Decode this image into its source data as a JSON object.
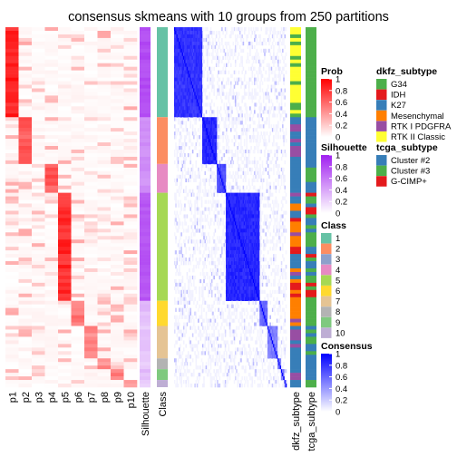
{
  "chart_data": {
    "type": "heatmap",
    "title": "consensus skmeans with 10 groups from 250 partitions",
    "prob_columns": [
      "p1",
      "p2",
      "p3",
      "p4",
      "p5",
      "p6",
      "p7",
      "p8",
      "p9",
      "p10"
    ],
    "silhouette_label": "Silhouette",
    "class_label": "Class",
    "annotation_columns": [
      "dkfz_subtype",
      "tcga_subtype"
    ],
    "legends": {
      "prob": {
        "title": "Prob",
        "ticks": [
          "1",
          "0.8",
          "0.6",
          "0.4",
          "0.2",
          "0"
        ],
        "low": "#ffffff",
        "high": "#ff0000"
      },
      "silhouette": {
        "title": "Silhouette",
        "ticks": [
          "1",
          "0.8",
          "0.6",
          "0.4",
          "0.2",
          "0"
        ],
        "low": "#ffffff",
        "high": "#a020f0"
      },
      "class": {
        "title": "Class",
        "items": [
          {
            "label": "1",
            "color": "#66c2a5"
          },
          {
            "label": "2",
            "color": "#fc8d62"
          },
          {
            "label": "3",
            "color": "#8da0cb"
          },
          {
            "label": "4",
            "color": "#e78ac3"
          },
          {
            "label": "5",
            "color": "#a6d854"
          },
          {
            "label": "6",
            "color": "#ffd92f"
          },
          {
            "label": "7",
            "color": "#e5c494"
          },
          {
            "label": "8",
            "color": "#b3b3b3"
          },
          {
            "label": "9",
            "color": "#7fc97f"
          },
          {
            "label": "10",
            "color": "#beaed4"
          }
        ]
      },
      "consensus": {
        "title": "Consensus",
        "ticks": [
          "1",
          "0.8",
          "0.6",
          "0.4",
          "0.2",
          "0"
        ],
        "low": "#ffffff",
        "high": "#0000ff"
      },
      "dkfz_subtype": {
        "title": "dkfz_subtype",
        "items": [
          {
            "label": "G34",
            "color": "#4daf4a"
          },
          {
            "label": "IDH",
            "color": "#e41a1c"
          },
          {
            "label": "K27",
            "color": "#377eb8"
          },
          {
            "label": "Mesenchymal",
            "color": "#ff7f00"
          },
          {
            "label": "RTK I PDGFRA",
            "color": "#984ea3"
          },
          {
            "label": "RTK II Classic",
            "color": "#ffff33"
          }
        ]
      },
      "tcga_subtype": {
        "title": "tcga_subtype",
        "items": [
          {
            "label": "Cluster #2",
            "color": "#377eb8"
          },
          {
            "label": "Cluster #3",
            "color": "#4daf4a"
          },
          {
            "label": "G-CIMP+",
            "color": "#e41a1c"
          }
        ]
      }
    },
    "groups": [
      {
        "class": 1,
        "n_samples": 25,
        "dominant_prob_column": "p1",
        "mean_silhouette": 0.8,
        "within_consensus": 0.8
      },
      {
        "class": 2,
        "n_samples": 13,
        "dominant_prob_column": "p2",
        "mean_silhouette": 0.5,
        "within_consensus": 0.85
      },
      {
        "class": 4,
        "n_samples": 8,
        "dominant_prob_column": "p4",
        "mean_silhouette": 0.5,
        "within_consensus": 0.7
      },
      {
        "class": 5,
        "n_samples": 30,
        "dominant_prob_column": "p5",
        "mean_silhouette": 0.75,
        "within_consensus": 0.85
      },
      {
        "class": 6,
        "n_samples": 7,
        "dominant_prob_column": "p6",
        "mean_silhouette": 0.3,
        "within_consensus": 0.6
      },
      {
        "class": 7,
        "n_samples": 9,
        "dominant_prob_column": "p7",
        "mean_silhouette": 0.25,
        "within_consensus": 0.5
      },
      {
        "class": 8,
        "n_samples": 3,
        "dominant_prob_column": "p8",
        "mean_silhouette": 0.2,
        "within_consensus": 0.5
      },
      {
        "class": 9,
        "n_samples": 3,
        "dominant_prob_column": "p9",
        "mean_silhouette": 0.3,
        "within_consensus": 0.5
      },
      {
        "class": 10,
        "n_samples": 2,
        "dominant_prob_column": "p10",
        "mean_silhouette": 0.2,
        "within_consensus": 0.4
      }
    ]
  }
}
